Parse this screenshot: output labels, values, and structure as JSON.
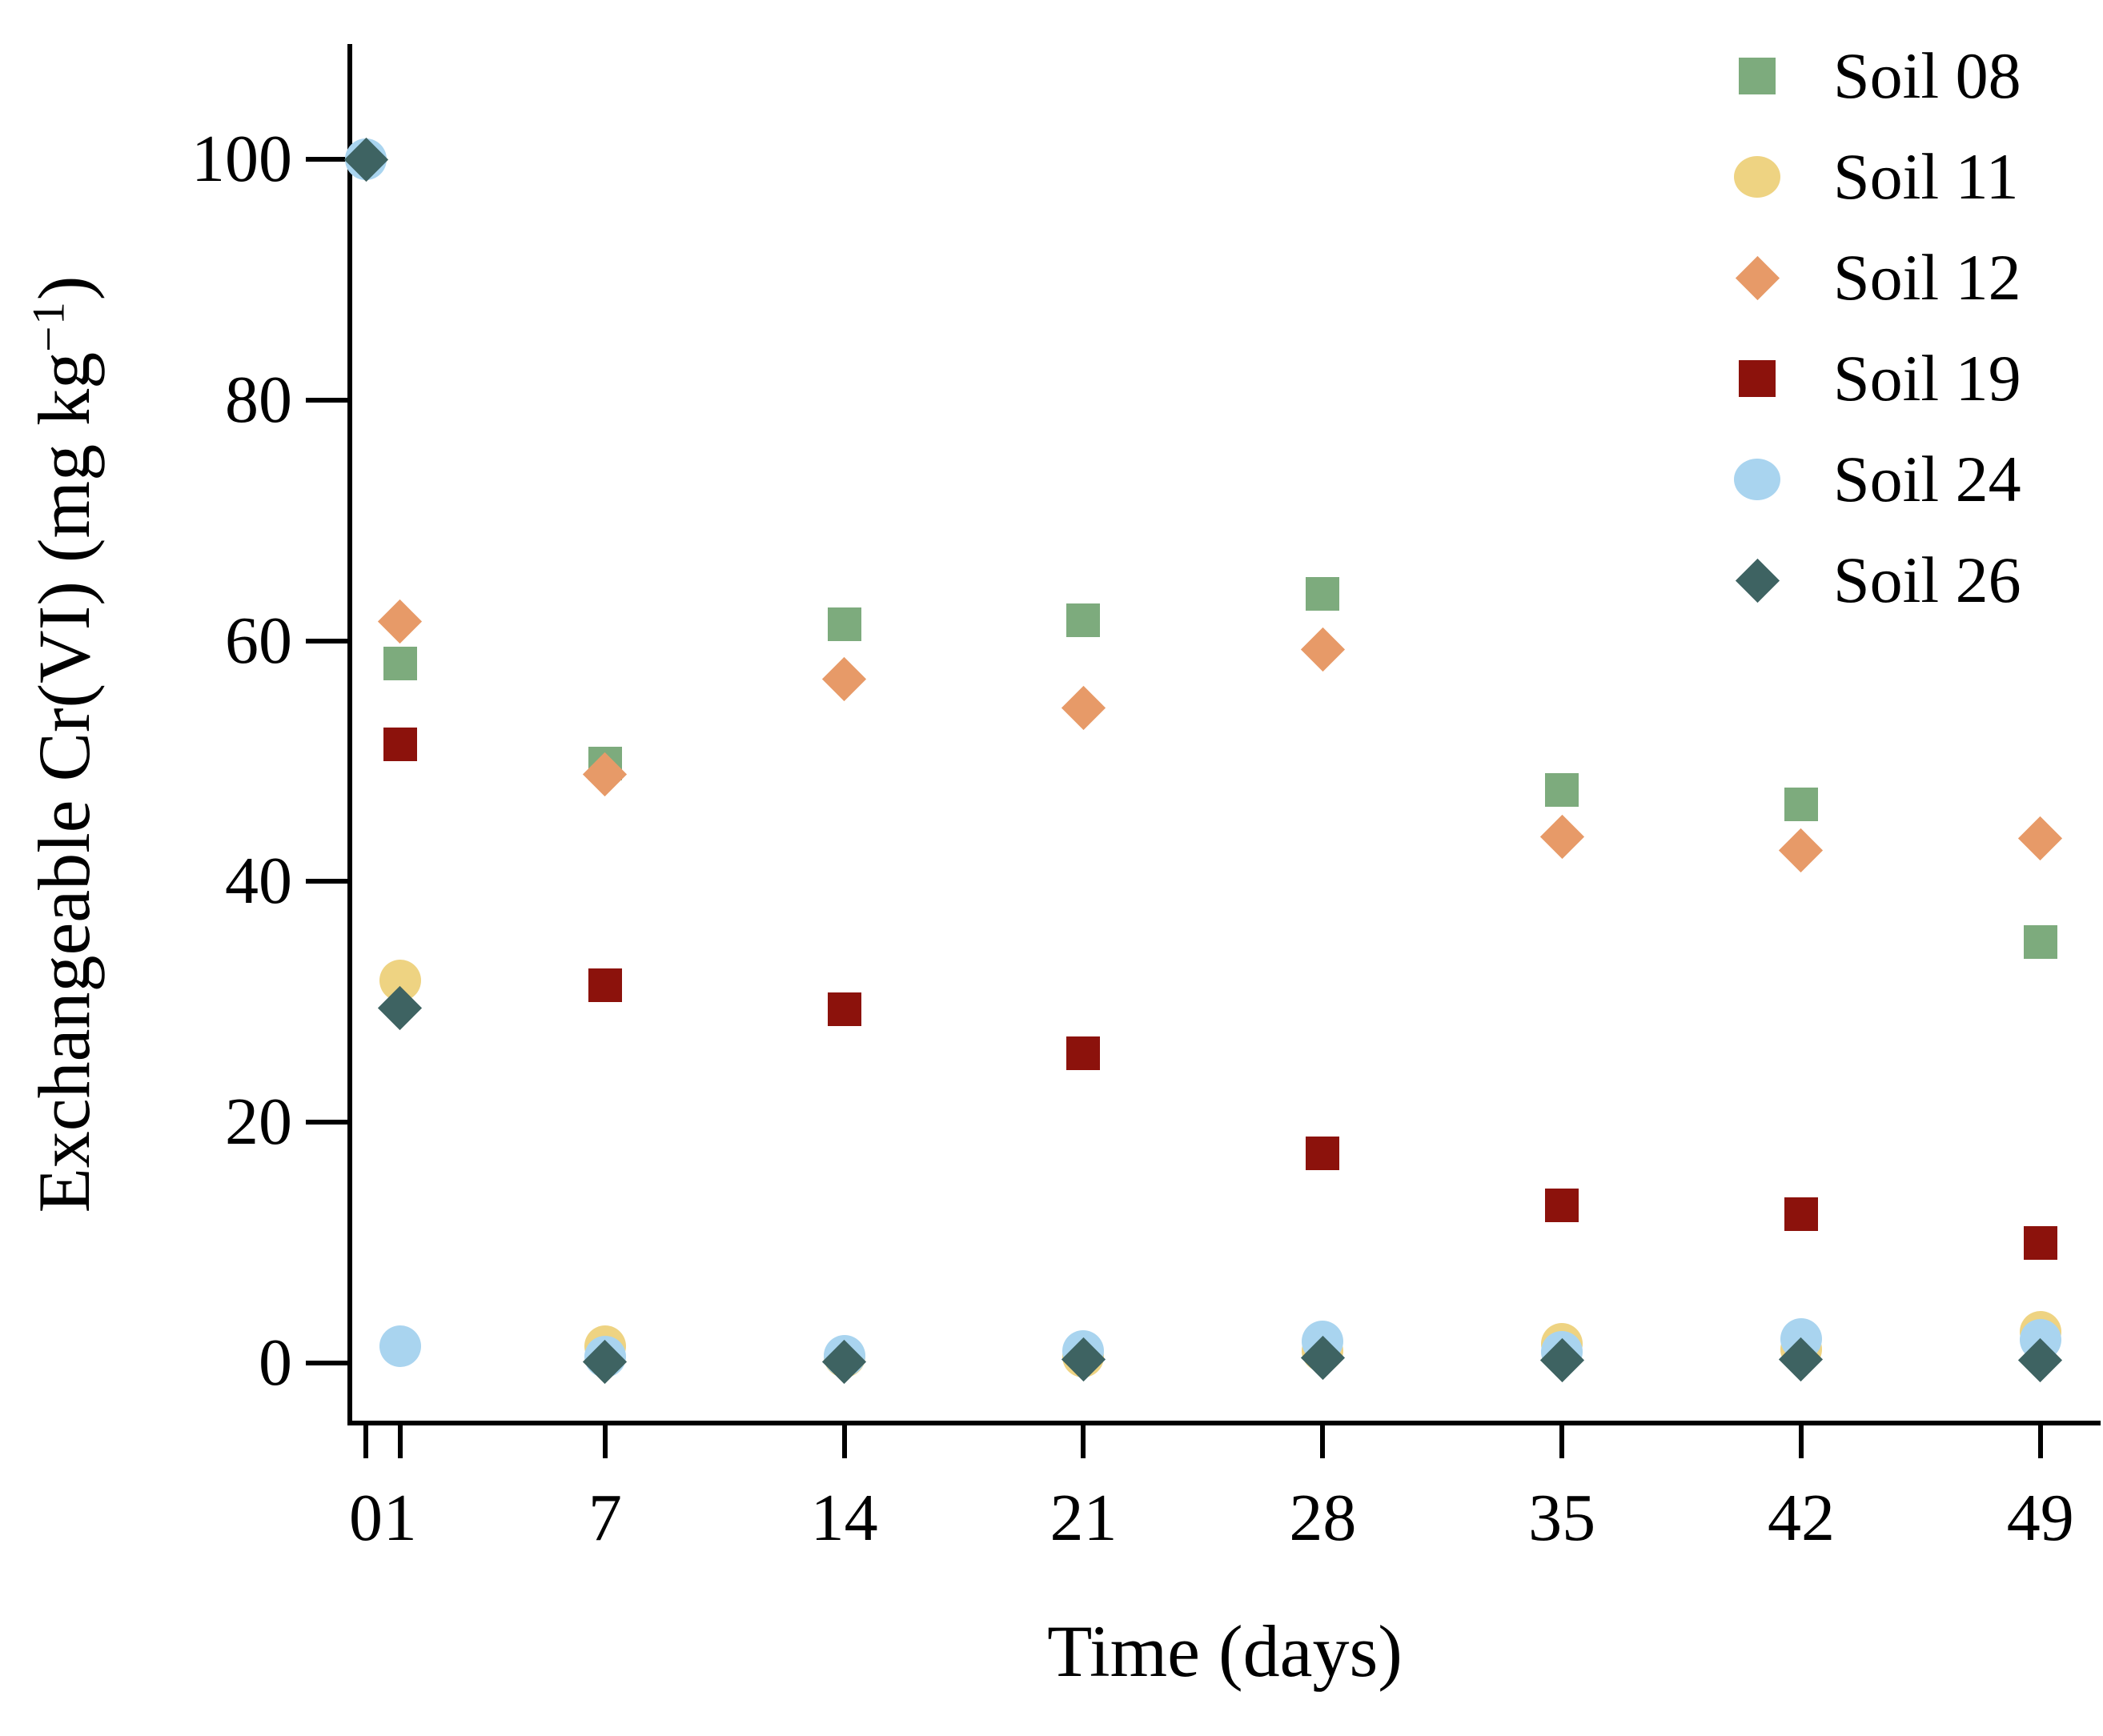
{
  "chart_data": {
    "type": "scatter",
    "title": "",
    "xlabel": "Time (days)",
    "ylabel": "Exchangeable Cr(VI) (mg kg−1)",
    "ylabel_parts": {
      "pre": "Exchangeable Cr(VI) (mg kg",
      "sup": "−1",
      "post": ")"
    },
    "xlim": [
      0,
      51
    ],
    "ylim": [
      0,
      108
    ],
    "grid": false,
    "legend_position": "top-right",
    "x_ticks": [
      0,
      1,
      7,
      14,
      21,
      28,
      35,
      42,
      49
    ],
    "x_tick_labels": [
      "0",
      "1",
      "7",
      "14",
      "21",
      "28",
      "35",
      "42",
      "49"
    ],
    "y_ticks": [
      0,
      20,
      40,
      60,
      80,
      100
    ],
    "y_tick_labels": [
      "0",
      "20",
      "40",
      "60",
      "80",
      "100"
    ],
    "series": [
      {
        "name": "Soil 08",
        "marker": "square",
        "color": "#7dab7d",
        "x": [
          1,
          7,
          14,
          21,
          28,
          35,
          42,
          49
        ],
        "y": [
          58.1,
          49.8,
          61.4,
          61.7,
          63.9,
          47.6,
          46.4,
          35.0
        ]
      },
      {
        "name": "Soil 11",
        "marker": "circle",
        "color": "#eed382",
        "x": [
          1,
          7,
          14,
          21,
          28,
          35,
          42,
          49
        ],
        "y": [
          31.8,
          1.4,
          0.5,
          0.5,
          1.0,
          1.6,
          1.1,
          2.6
        ]
      },
      {
        "name": "Soil 12",
        "marker": "diamond",
        "color": "#e79a68",
        "x": [
          1,
          7,
          14,
          21,
          28,
          35,
          42,
          49
        ],
        "y": [
          61.6,
          48.9,
          56.8,
          54.4,
          59.3,
          43.7,
          42.6,
          43.6
        ]
      },
      {
        "name": "Soil 19",
        "marker": "square",
        "color": "#8c120c",
        "x": [
          1,
          7,
          14,
          21,
          28,
          35,
          42,
          49
        ],
        "y": [
          51.4,
          31.4,
          29.4,
          25.7,
          17.4,
          13.1,
          12.4,
          10.0
        ]
      },
      {
        "name": "Soil 24",
        "marker": "circle",
        "color": "#a9d4ef",
        "x": [
          0,
          1,
          7,
          14,
          21,
          28,
          35,
          42,
          49
        ],
        "y": [
          100,
          1.4,
          0.5,
          0.6,
          1.0,
          1.8,
          0.9,
          2.0,
          1.9
        ]
      },
      {
        "name": "Soil 26",
        "marker": "diamond",
        "color": "#3e6362",
        "x": [
          0,
          1,
          7,
          14,
          21,
          28,
          35,
          42,
          49
        ],
        "y": [
          100,
          29.5,
          0.1,
          0.1,
          0.3,
          0.4,
          0.2,
          0.3,
          0.2
        ]
      }
    ]
  }
}
